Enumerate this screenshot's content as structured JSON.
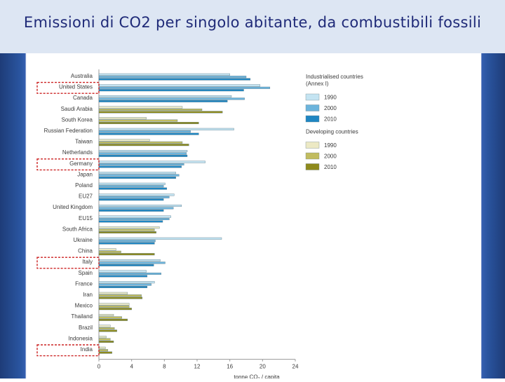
{
  "slide": {
    "title": "Emissioni di CO2 per singolo abitante,  da combustibili fossili"
  },
  "chart_data": {
    "type": "bar",
    "orientation": "horizontal",
    "xlabel": "tonne CO₂ / capita",
    "xlim": [
      0,
      24
    ],
    "xticks": [
      "0",
      "4",
      "8",
      "12",
      "16",
      "20",
      "24"
    ],
    "categories": [
      "Australia",
      "United States",
      "Canada",
      "Saudi Arabia",
      "South Korea",
      "Russian Federation",
      "Taiwan",
      "Netherlands",
      "Germany",
      "Japan",
      "Poland",
      "EU27",
      "United Kingdom",
      "EU15",
      "South Africa",
      "Ukraine",
      "China",
      "Italy",
      "Spain",
      "France",
      "Iran",
      "Mexico",
      "Thailand",
      "Brazil",
      "Indonesia",
      "India"
    ],
    "highlighted": [
      "United States",
      "Germany",
      "Italy",
      "India"
    ],
    "legend": {
      "groups": [
        {
          "title": "Industrialised countries\n(Annex I)",
          "items": [
            "1990",
            "2000",
            "2010"
          ]
        },
        {
          "title": "Developing countries",
          "items": [
            "1990",
            "2000",
            "2010"
          ]
        }
      ],
      "placement": "right"
    },
    "group_membership": [
      "industrialised",
      "industrialised",
      "industrialised",
      "developing",
      "developing",
      "industrialised",
      "developing",
      "industrialised",
      "industrialised",
      "industrialised",
      "industrialised",
      "industrialised",
      "industrialised",
      "industrialised",
      "developing",
      "industrialised",
      "developing",
      "industrialised",
      "industrialised",
      "industrialised",
      "developing",
      "developing",
      "developing",
      "developing",
      "developing",
      "developing"
    ],
    "series": [
      {
        "name": "1990",
        "values": [
          16.0,
          19.7,
          16.2,
          10.2,
          5.8,
          16.5,
          6.2,
          10.8,
          13.0,
          9.4,
          8.1,
          9.2,
          10.1,
          8.8,
          7.4,
          15.0,
          2.1,
          7.5,
          5.8,
          6.8,
          3.5,
          3.7,
          1.8,
          1.4,
          0.9,
          0.8
        ]
      },
      {
        "name": "2000",
        "values": [
          18.0,
          20.9,
          17.8,
          12.6,
          9.6,
          11.2,
          10.2,
          10.7,
          10.4,
          9.8,
          7.9,
          8.6,
          9.1,
          8.6,
          6.8,
          6.9,
          2.7,
          8.1,
          7.6,
          6.4,
          5.2,
          3.7,
          2.8,
          1.9,
          1.4,
          1.1
        ]
      },
      {
        "name": "2010",
        "values": [
          18.5,
          17.7,
          15.7,
          15.1,
          12.2,
          12.2,
          11.0,
          10.8,
          10.1,
          9.4,
          8.3,
          7.9,
          7.9,
          7.8,
          7.0,
          6.8,
          6.8,
          6.7,
          5.9,
          5.9,
          5.3,
          4.0,
          3.5,
          2.2,
          1.8,
          1.6
        ]
      }
    ],
    "colors": {
      "industrialised": [
        "#c4e4f2",
        "#6cb4dc",
        "#1f86c2"
      ],
      "developing": [
        "#ece9c4",
        "#c1bc5f",
        "#8e8a1c"
      ],
      "highlight_box": "#cc2222"
    },
    "grid": false
  }
}
